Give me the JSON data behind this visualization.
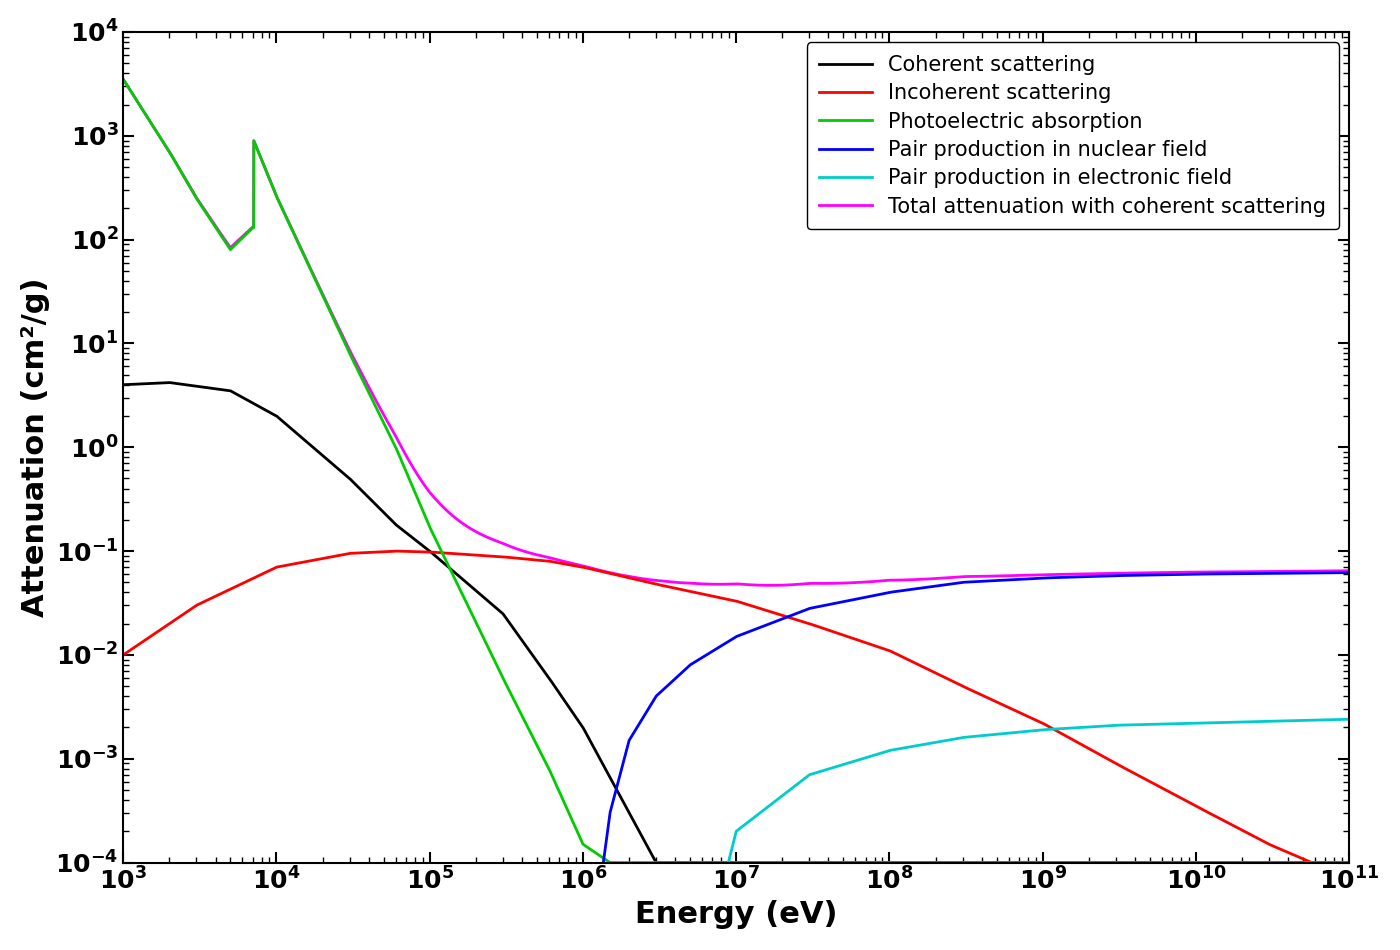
{
  "title": "",
  "xlabel": "Energy (eV)",
  "ylabel": "Attenuation (cm²/g)",
  "xlim": [
    1000.0,
    100000000000.0
  ],
  "ylim": [
    0.0001,
    10000.0
  ],
  "legend_entries": [
    "Coherent scattering",
    "Incoherent scattering",
    "Photoelectric absorption",
    "Pair production in nuclear field",
    "Pair production in electronic field",
    "Total attenuation with coherent scattering"
  ],
  "colors": {
    "coherent": "#000000",
    "incoherent": "#ff0000",
    "photoelectric": "#00cc00",
    "pair_nuclear": "#0000ff",
    "pair_electronic": "#00cccc",
    "total": "#ff00ff"
  },
  "linewidth": 2.0,
  "figsize": [
    14.0,
    9.5
  ],
  "dpi": 100,
  "coherent_pts": [
    [
      1000.0,
      4.0
    ],
    [
      2000.0,
      4.2
    ],
    [
      5000.0,
      3.5
    ],
    [
      10000.0,
      2.0
    ],
    [
      30000.0,
      0.5
    ],
    [
      60000.0,
      0.18
    ],
    [
      100000.0,
      0.1
    ],
    [
      300000.0,
      0.025
    ],
    [
      600000.0,
      0.006
    ],
    [
      1000000.0,
      0.002
    ],
    [
      3000000.0,
      0.0001
    ]
  ],
  "incoherent_pts": [
    [
      1000.0,
      0.01
    ],
    [
      3000.0,
      0.03
    ],
    [
      10000.0,
      0.07
    ],
    [
      30000.0,
      0.095
    ],
    [
      60000.0,
      0.1
    ],
    [
      100000.0,
      0.098
    ],
    [
      300000.0,
      0.088
    ],
    [
      600000.0,
      0.08
    ],
    [
      1000000.0,
      0.07
    ],
    [
      3000000.0,
      0.048
    ],
    [
      10000000.0,
      0.033
    ],
    [
      30000000.0,
      0.02
    ],
    [
      100000000.0,
      0.011
    ],
    [
      300000000.0,
      0.005
    ],
    [
      1000000000.0,
      0.0022
    ],
    [
      3000000000.0,
      0.0009
    ],
    [
      10000000000.0,
      0.00035
    ],
    [
      30000000000.0,
      0.00015
    ],
    [
      100000000000.0,
      7e-05
    ]
  ],
  "photo_pts_above": [
    [
      7100.0,
      900
    ],
    [
      10000.0,
      260
    ],
    [
      30000.0,
      8.0
    ],
    [
      60000.0,
      1.0
    ],
    [
      100000.0,
      0.17
    ],
    [
      300000.0,
      0.006
    ],
    [
      600000.0,
      0.0008
    ],
    [
      1000000.0,
      0.00015
    ],
    [
      1500000.0,
      0.0001
    ]
  ],
  "photo_pts_below": [
    [
      1000.0,
      3500
    ],
    [
      2000.0,
      700
    ],
    [
      3000.0,
      250
    ],
    [
      5000.0,
      80
    ],
    [
      7000.0,
      130
    ]
  ],
  "pair_nuc_pts": [
    [
      1022000.0,
      1e-15
    ],
    [
      1100000.0,
      1e-05
    ],
    [
      1500000.0,
      0.0003
    ],
    [
      2000000.0,
      0.0015
    ],
    [
      3000000.0,
      0.004
    ],
    [
      5000000.0,
      0.008
    ],
    [
      10000000.0,
      0.015
    ],
    [
      30000000.0,
      0.028
    ],
    [
      100000000.0,
      0.04
    ],
    [
      300000000.0,
      0.05
    ],
    [
      1000000000.0,
      0.055
    ],
    [
      3000000000.0,
      0.058
    ],
    [
      10000000000.0,
      0.06
    ],
    [
      100000000000.0,
      0.062
    ]
  ],
  "pair_elec_pts": [
    [
      4000000.0,
      1e-15
    ],
    [
      6000000.0,
      1e-05
    ],
    [
      10000000.0,
      0.0002
    ],
    [
      30000000.0,
      0.0007
    ],
    [
      100000000.0,
      0.0012
    ],
    [
      300000000.0,
      0.0016
    ],
    [
      1000000000.0,
      0.0019
    ],
    [
      3000000000.0,
      0.0021
    ],
    [
      10000000000.0,
      0.0022
    ],
    [
      100000000000.0,
      0.0024
    ]
  ],
  "Kedge_eV": 7100,
  "background": "#ffffff"
}
